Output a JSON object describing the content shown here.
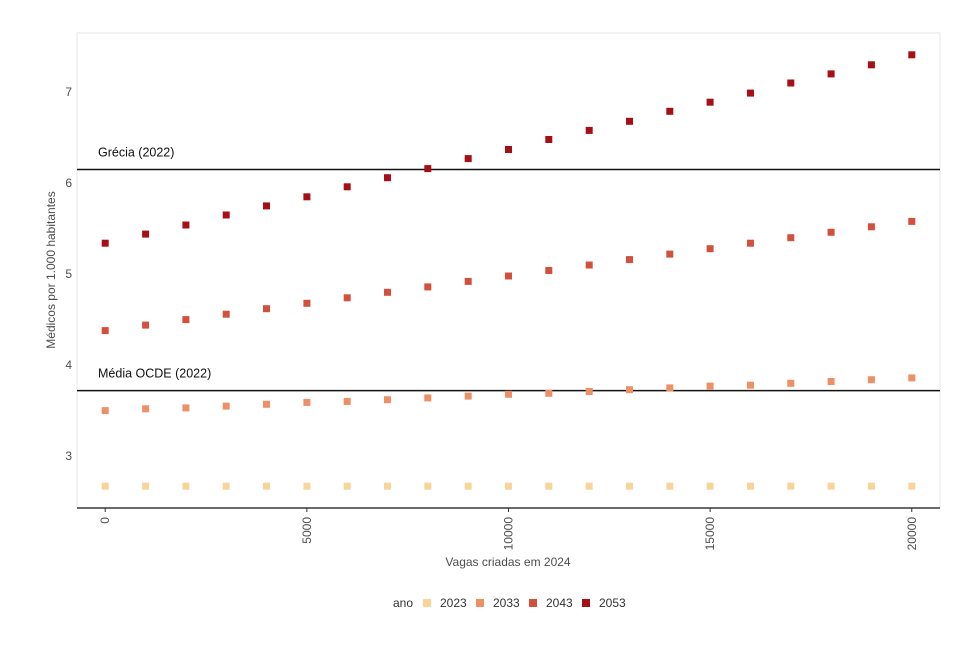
{
  "chart_data": {
    "type": "scatter",
    "xlabel": "Vagas criadas em 2024",
    "ylabel": "Médicos por 1.000 habitantes",
    "xlim": [
      -700,
      20700
    ],
    "ylim": [
      2.43,
      7.65
    ],
    "x_ticks": [
      0,
      5000,
      10000,
      15000,
      20000
    ],
    "x_tick_labels": [
      "0",
      "5000",
      "10000",
      "15000",
      "20000"
    ],
    "y_ticks": [
      3,
      4,
      5,
      6,
      7
    ],
    "y_tick_labels": [
      "3",
      "4",
      "5",
      "6",
      "7"
    ],
    "grid": false,
    "marker": "square",
    "legend": {
      "title": "ano",
      "position": "bottom"
    },
    "x": [
      0,
      1000,
      2000,
      3000,
      4000,
      5000,
      6000,
      7000,
      8000,
      9000,
      10000,
      11000,
      12000,
      13000,
      14000,
      15000,
      16000,
      17000,
      18000,
      19000,
      20000
    ],
    "series": [
      {
        "name": "2023",
        "color": "#f8d49a",
        "values": [
          2.67,
          2.67,
          2.67,
          2.67,
          2.67,
          2.67,
          2.67,
          2.67,
          2.67,
          2.67,
          2.67,
          2.67,
          2.67,
          2.67,
          2.67,
          2.67,
          2.67,
          2.67,
          2.67,
          2.67,
          2.67
        ]
      },
      {
        "name": "2033",
        "color": "#ee9066",
        "values": [
          3.5,
          3.52,
          3.53,
          3.55,
          3.57,
          3.59,
          3.6,
          3.62,
          3.64,
          3.66,
          3.68,
          3.69,
          3.71,
          3.73,
          3.75,
          3.77,
          3.78,
          3.8,
          3.82,
          3.84,
          3.86
        ]
      },
      {
        "name": "2043",
        "color": "#d2503c",
        "values": [
          4.38,
          4.44,
          4.5,
          4.56,
          4.62,
          4.68,
          4.74,
          4.8,
          4.86,
          4.92,
          4.98,
          5.04,
          5.1,
          5.16,
          5.22,
          5.28,
          5.34,
          5.4,
          5.46,
          5.52,
          5.58
        ]
      },
      {
        "name": "2053",
        "color": "#a50f15",
        "values": [
          5.34,
          5.44,
          5.54,
          5.65,
          5.75,
          5.85,
          5.96,
          6.06,
          6.16,
          6.27,
          6.37,
          6.48,
          6.58,
          6.68,
          6.79,
          6.89,
          6.99,
          7.1,
          7.2,
          7.3,
          7.41
        ]
      }
    ],
    "reference_lines": [
      {
        "label": "Grécia (2022)",
        "y": 6.15
      },
      {
        "label": "Média OCDE (2022)",
        "y": 3.72
      }
    ]
  }
}
